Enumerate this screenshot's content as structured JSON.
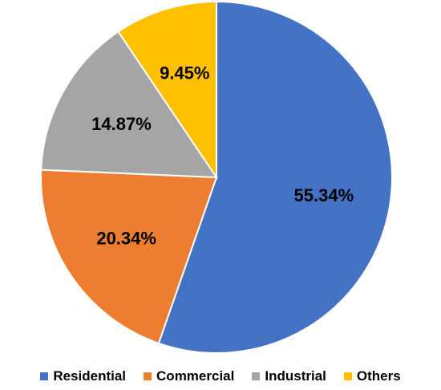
{
  "chart_data": {
    "type": "pie",
    "title": "",
    "slices": [
      {
        "name": "Residential",
        "value": 55.34,
        "label": "55.34%",
        "color": "#4472C4"
      },
      {
        "name": "Commercial",
        "value": 20.34,
        "label": "20.34%",
        "color": "#ED7D31"
      },
      {
        "name": "Industrial",
        "value": 14.87,
        "label": "14.87%",
        "color": "#A5A5A5"
      },
      {
        "name": "Others",
        "value": 9.45,
        "label": "9.45%",
        "color": "#FFC000"
      }
    ],
    "start_angle": "12 o'clock",
    "direction": "clockwise",
    "legend": {
      "position": "bottom"
    }
  }
}
